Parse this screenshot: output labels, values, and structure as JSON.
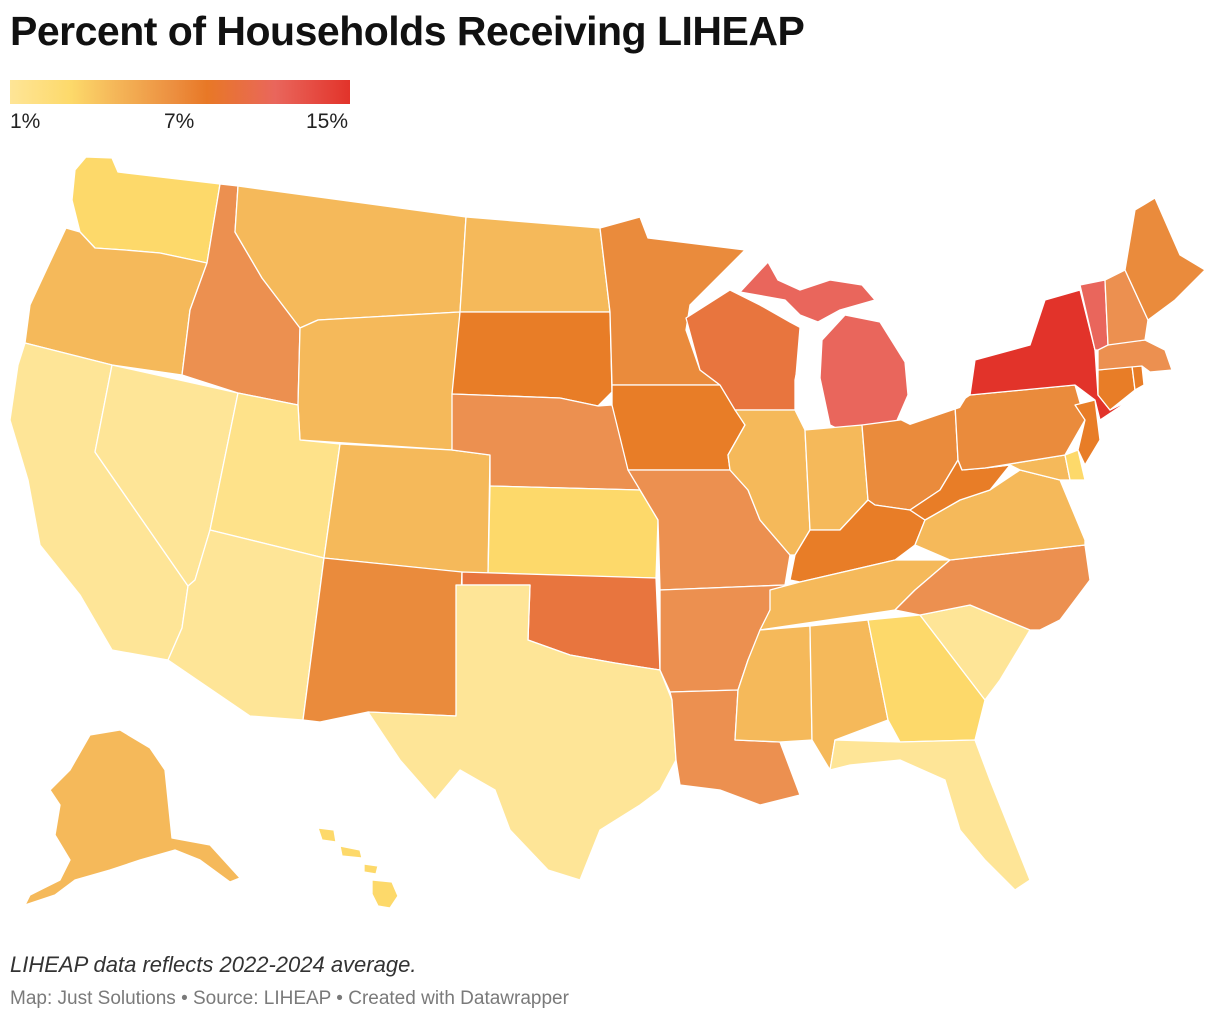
{
  "title": "Percent of Households Receiving LIHEAP",
  "legend": {
    "min_label": "1%",
    "mid_label": "7%",
    "max_label": "15%",
    "colors": [
      "#fee597",
      "#fdd96a",
      "#f5b95a",
      "#ec8f40",
      "#e87826",
      "#e9665c",
      "#e2332a"
    ]
  },
  "map": {
    "type": "choropleth",
    "region": "United States",
    "states": [
      {
        "abbr": "WA",
        "name": "Washington",
        "level": "low",
        "color": "#fdd96a"
      },
      {
        "abbr": "OR",
        "name": "Oregon",
        "level": "mid-low",
        "color": "#f5b95a"
      },
      {
        "abbr": "CA",
        "name": "California",
        "level": "lowest",
        "color": "#fee597"
      },
      {
        "abbr": "NV",
        "name": "Nevada",
        "level": "lowest",
        "color": "#fee597"
      },
      {
        "abbr": "ID",
        "name": "Idaho",
        "level": "mid",
        "color": "#ec9050"
      },
      {
        "abbr": "MT",
        "name": "Montana",
        "level": "mid-low",
        "color": "#f5b95a"
      },
      {
        "abbr": "WY",
        "name": "Wyoming",
        "level": "mid-low",
        "color": "#f5b95a"
      },
      {
        "abbr": "UT",
        "name": "Utah",
        "level": "low",
        "color": "#fee28a"
      },
      {
        "abbr": "AZ",
        "name": "Arizona",
        "level": "lowest",
        "color": "#fee597"
      },
      {
        "abbr": "CO",
        "name": "Colorado",
        "level": "mid-low",
        "color": "#f5b95a"
      },
      {
        "abbr": "NM",
        "name": "New Mexico",
        "level": "mid",
        "color": "#ea8b3c"
      },
      {
        "abbr": "ND",
        "name": "North Dakota",
        "level": "mid-low",
        "color": "#f5b95a"
      },
      {
        "abbr": "SD",
        "name": "South Dakota",
        "level": "mid-high",
        "color": "#e87d27"
      },
      {
        "abbr": "NE",
        "name": "Nebraska",
        "level": "mid",
        "color": "#ec9050"
      },
      {
        "abbr": "KS",
        "name": "Kansas",
        "level": "low",
        "color": "#fdd96a"
      },
      {
        "abbr": "OK",
        "name": "Oklahoma",
        "level": "high",
        "color": "#e8753e"
      },
      {
        "abbr": "TX",
        "name": "Texas",
        "level": "lowest",
        "color": "#fee597"
      },
      {
        "abbr": "MN",
        "name": "Minnesota",
        "level": "mid",
        "color": "#ea8b3c"
      },
      {
        "abbr": "IA",
        "name": "Iowa",
        "level": "mid-high",
        "color": "#e87d27"
      },
      {
        "abbr": "MO",
        "name": "Missouri",
        "level": "mid",
        "color": "#ec9050"
      },
      {
        "abbr": "AR",
        "name": "Arkansas",
        "level": "mid",
        "color": "#ec9050"
      },
      {
        "abbr": "LA",
        "name": "Louisiana",
        "level": "mid",
        "color": "#ec9050"
      },
      {
        "abbr": "WI",
        "name": "Wisconsin",
        "level": "high",
        "color": "#e8753e"
      },
      {
        "abbr": "IL",
        "name": "Illinois",
        "level": "mid-low",
        "color": "#f5b95a"
      },
      {
        "abbr": "MI",
        "name": "Michigan",
        "level": "very-high",
        "color": "#e9665c"
      },
      {
        "abbr": "IN",
        "name": "Indiana",
        "level": "mid-low",
        "color": "#f5b95a"
      },
      {
        "abbr": "OH",
        "name": "Ohio",
        "level": "mid",
        "color": "#ea8b3c"
      },
      {
        "abbr": "KY",
        "name": "Kentucky",
        "level": "mid-high",
        "color": "#e87d27"
      },
      {
        "abbr": "TN",
        "name": "Tennessee",
        "level": "mid-low",
        "color": "#f5b95a"
      },
      {
        "abbr": "MS",
        "name": "Mississippi",
        "level": "mid-low",
        "color": "#f5b95a"
      },
      {
        "abbr": "AL",
        "name": "Alabama",
        "level": "mid-low",
        "color": "#f5b95a"
      },
      {
        "abbr": "GA",
        "name": "Georgia",
        "level": "low",
        "color": "#fdd96a"
      },
      {
        "abbr": "FL",
        "name": "Florida",
        "level": "lowest",
        "color": "#fee597"
      },
      {
        "abbr": "SC",
        "name": "South Carolina",
        "level": "lowest",
        "color": "#fee597"
      },
      {
        "abbr": "NC",
        "name": "North Carolina",
        "level": "mid",
        "color": "#ec9050"
      },
      {
        "abbr": "VA",
        "name": "Virginia",
        "level": "mid-low",
        "color": "#f5b95a"
      },
      {
        "abbr": "WV",
        "name": "West Virginia",
        "level": "mid-high",
        "color": "#e87d27"
      },
      {
        "abbr": "PA",
        "name": "Pennsylvania",
        "level": "mid",
        "color": "#ea8b3c"
      },
      {
        "abbr": "NY",
        "name": "New York",
        "level": "highest",
        "color": "#e2332a"
      },
      {
        "abbr": "VT",
        "name": "Vermont",
        "level": "very-high",
        "color": "#e9665c"
      },
      {
        "abbr": "NH",
        "name": "New Hampshire",
        "level": "mid",
        "color": "#ec9050"
      },
      {
        "abbr": "ME",
        "name": "Maine",
        "level": "mid",
        "color": "#ea8b3c"
      },
      {
        "abbr": "MA",
        "name": "Massachusetts",
        "level": "mid",
        "color": "#ec9050"
      },
      {
        "abbr": "CT",
        "name": "Connecticut",
        "level": "mid-high",
        "color": "#e87d27"
      },
      {
        "abbr": "RI",
        "name": "Rhode Island",
        "level": "mid-high",
        "color": "#e87d27"
      },
      {
        "abbr": "NJ",
        "name": "New Jersey",
        "level": "mid-high",
        "color": "#e87d27"
      },
      {
        "abbr": "DE",
        "name": "Delaware",
        "level": "low",
        "color": "#fdd96a"
      },
      {
        "abbr": "MD",
        "name": "Maryland",
        "level": "mid-low",
        "color": "#f5b95a"
      },
      {
        "abbr": "AK",
        "name": "Alaska",
        "level": "mid-low",
        "color": "#f5b95a"
      },
      {
        "abbr": "HI",
        "name": "Hawaii",
        "level": "low",
        "color": "#fdd96a"
      }
    ],
    "lake_color": "#ffffff"
  },
  "footer": {
    "note": "LIHEAP data reflects 2022-2024 average.",
    "credit": "Map: Just Solutions • Source: LIHEAP • Created with Datawrapper"
  }
}
